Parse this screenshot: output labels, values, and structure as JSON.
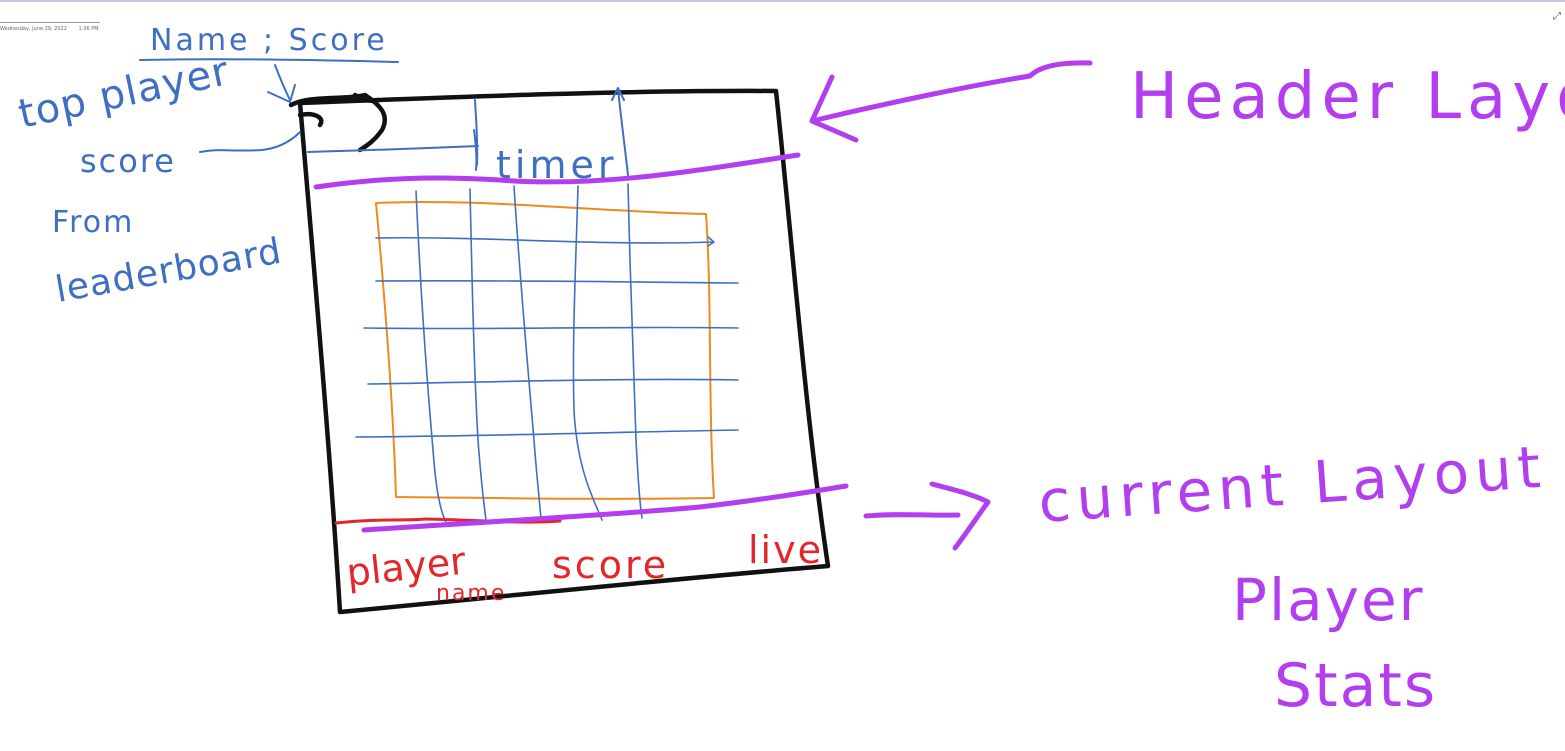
{
  "page": {
    "date": "Wednesday, June 29, 2022",
    "time": "1:36 PM"
  },
  "colors": {
    "blue_ink": "#3f6fc2",
    "black_ink": "#111111",
    "purple_ink": "#b23ef0",
    "orange_ink": "#f08a1c",
    "red_ink": "#e3262b"
  },
  "annotations": {
    "name_score": "Name ; Score",
    "top_player": "top player",
    "score": "score",
    "from": "From",
    "leaderboard": "leaderboard",
    "timer": "timer",
    "header_layout": "Header Layout",
    "current_layout": "current Layout",
    "player": "Player",
    "stats": "Stats"
  },
  "footer_labels": {
    "player": "player",
    "name": "name",
    "score": "score",
    "live": "live"
  },
  "icons": {
    "expand": "expand-icon"
  }
}
